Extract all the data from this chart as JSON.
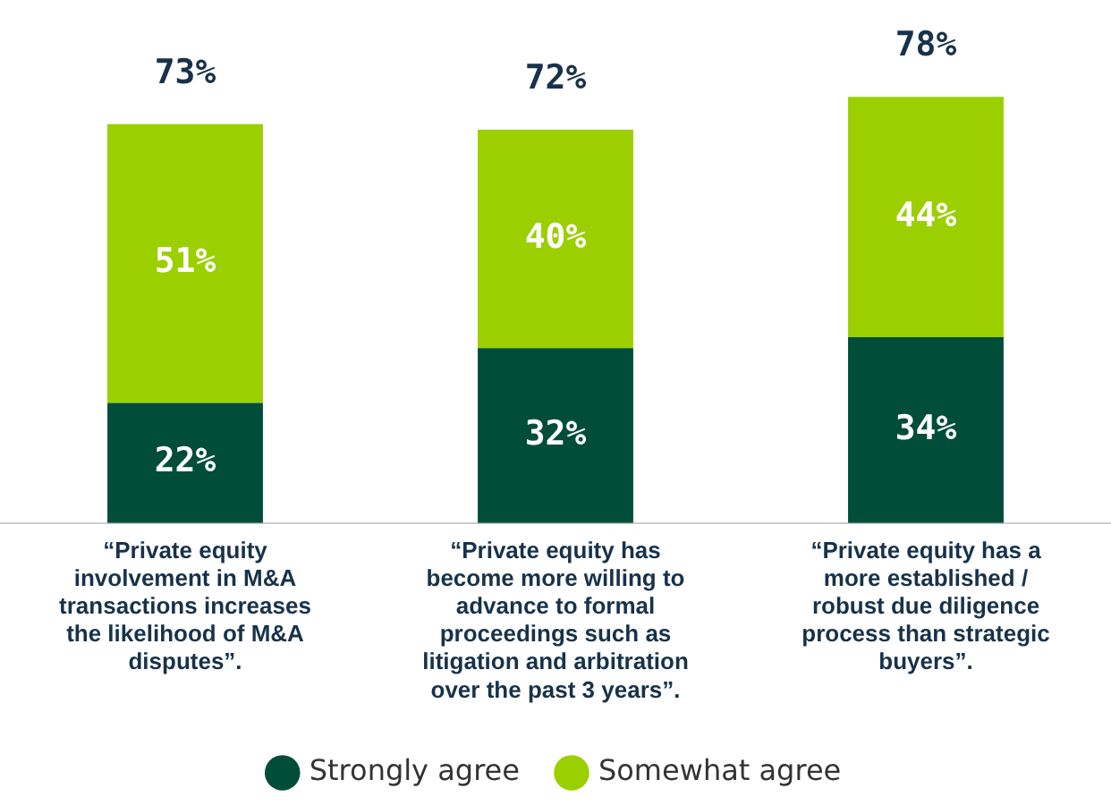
{
  "chart_data": {
    "type": "bar",
    "stacked": true,
    "categories": [
      "“Private equity involvement in M&A transactions increases the likelihood of M&A disputes”.",
      "“Private equity has become more willing to advance to formal proceedings such as litigation and arbitration over the past 3 years”.",
      "“Private equity has a more established / robust due diligence process than strategic buyers”."
    ],
    "series": [
      {
        "name": "Strongly agree",
        "color": "#004d3a",
        "values": [
          22,
          32,
          34
        ],
        "value_labels": [
          "22%",
          "32%",
          "34%"
        ]
      },
      {
        "name": "Somewhat agree",
        "color": "#9bcf00",
        "values": [
          51,
          40,
          44
        ],
        "value_labels": [
          "51%",
          "40%",
          "44%"
        ]
      }
    ],
    "totals": [
      "73%",
      "72%",
      "78%"
    ],
    "tick_labels": "x",
    "grid": false,
    "legend": "bottom"
  }
}
